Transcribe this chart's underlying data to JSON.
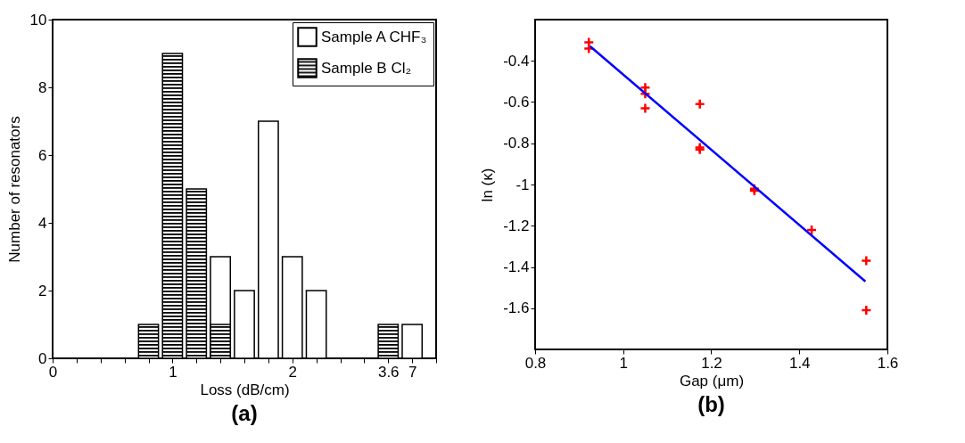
{
  "chart_data": [
    {
      "type": "bar",
      "title": "(a)",
      "xlabel": "Loss (dB/cm)",
      "ylabel": "Number of resonators",
      "categories": [
        "0",
        null,
        null,
        null,
        null,
        "1",
        null,
        null,
        null,
        null,
        "2",
        null,
        null,
        null,
        "3.6",
        "7",
        null
      ],
      "ylim": [
        0,
        10
      ],
      "yticks": [
        0,
        2,
        4,
        6,
        8,
        10
      ],
      "legend": "top right",
      "series": [
        {
          "name": "Sample A CHF₃",
          "color": "#ffffff",
          "values": [
            null,
            null,
            null,
            null,
            null,
            null,
            null,
            3,
            2,
            7,
            3,
            2,
            null,
            null,
            null,
            1,
            null
          ]
        },
        {
          "name": "Sample B Cl₂",
          "color": "#000000",
          "values": [
            null,
            null,
            null,
            null,
            1,
            9,
            5,
            1,
            null,
            null,
            null,
            null,
            null,
            null,
            1,
            null,
            null
          ]
        }
      ]
    },
    {
      "type": "scatter",
      "title": "(b)",
      "xlabel": "Gap (μm)",
      "ylabel": "ln (κ)",
      "xlim": [
        0.8,
        1.6
      ],
      "xticks": [
        0.8,
        1,
        1.2,
        1.4,
        1.6
      ],
      "ylim": [
        -1.8,
        -0.2
      ],
      "yticks": [
        -0.4,
        -0.6,
        -0.8,
        -1,
        -1.2,
        -1.4,
        -1.6
      ],
      "series": [
        {
          "color": "#ff0000",
          "marker": "cross",
          "x": [
            0.922,
            0.922,
            1.05,
            1.05,
            1.05,
            1.174,
            1.174,
            1.174,
            1.298,
            1.298,
            1.428,
            1.552,
            1.552
          ],
          "values": [
            -0.31,
            -0.34,
            -0.53,
            -0.56,
            -0.63,
            -0.61,
            -0.82,
            -0.83,
            -1.02,
            -1.03,
            -1.22,
            -1.37,
            -1.61
          ]
        },
        {
          "type": "line",
          "color": "#0000ff",
          "x": [
            0.925,
            1.55
          ],
          "values": [
            -0.33,
            -1.47
          ]
        }
      ]
    }
  ]
}
